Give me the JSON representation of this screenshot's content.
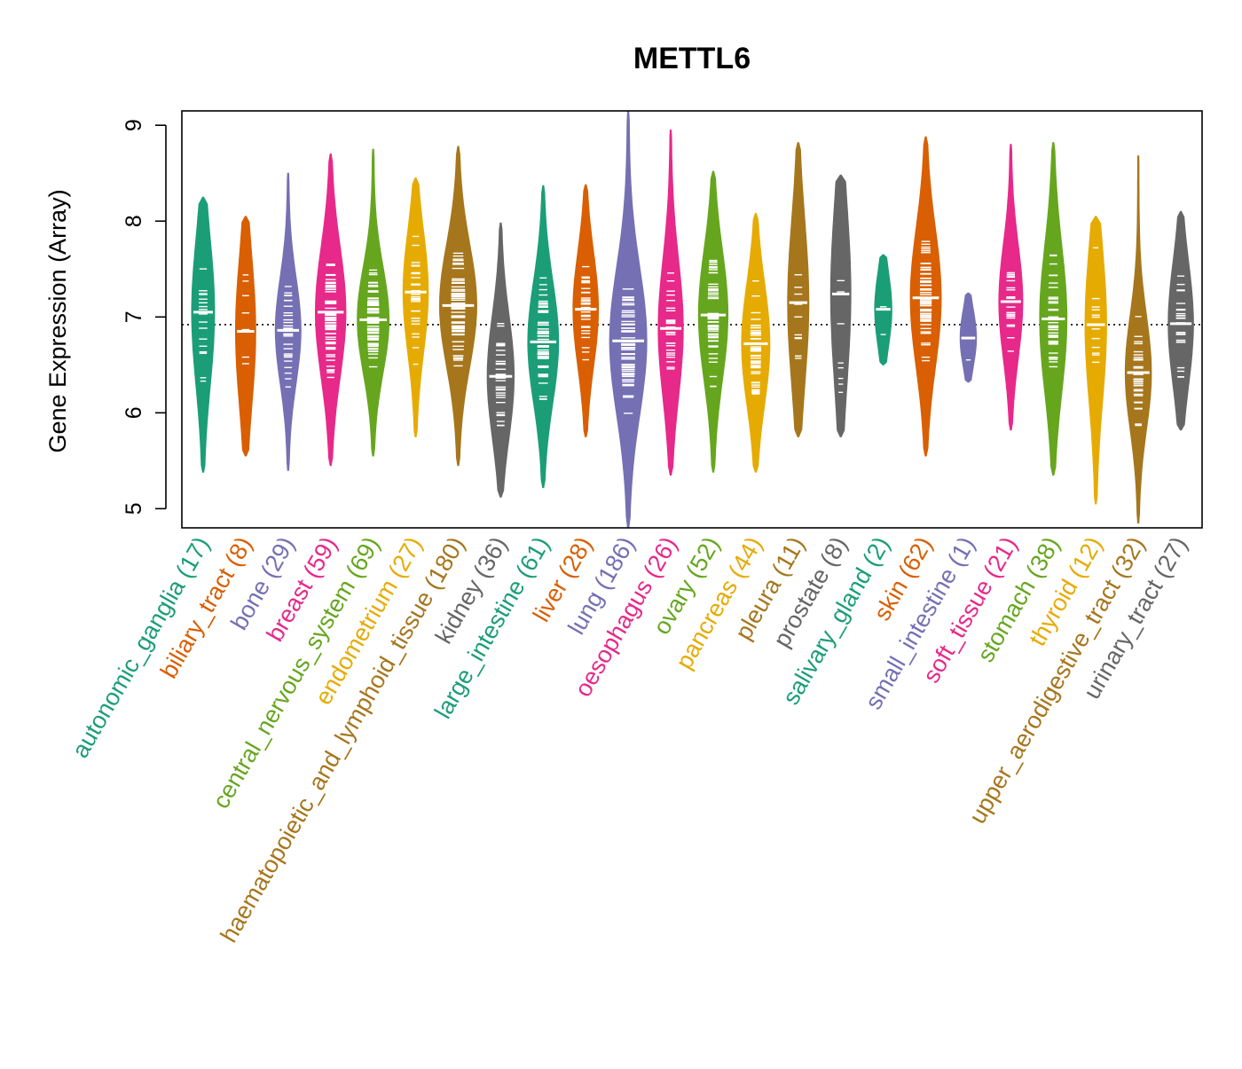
{
  "chart_data": {
    "type": "violin",
    "title": "METTL6",
    "ylabel": "Gene Expression (Array)",
    "xlabel": "",
    "ylim": [
      4.8,
      9.15
    ],
    "yticks": [
      "5",
      "6",
      "7",
      "8",
      "9"
    ],
    "reference_line": 6.92,
    "series": [
      {
        "name": "autonomic_ganglia",
        "n": "(17)",
        "color": "#1b9e77",
        "min": 5.38,
        "max": 8.25,
        "median": 7.05,
        "q1": 6.55,
        "q3": 7.45
      },
      {
        "name": "biliary_tract",
        "n": "(8)",
        "color": "#d95f02",
        "min": 5.55,
        "max": 8.05,
        "median": 6.85,
        "q1": 6.5,
        "q3": 7.4
      },
      {
        "name": "bone",
        "n": "(29)",
        "color": "#7570b3",
        "min": 5.4,
        "max": 8.5,
        "median": 6.86,
        "q1": 6.5,
        "q3": 7.15
      },
      {
        "name": "breast",
        "n": "(59)",
        "color": "#e7298a",
        "min": 5.45,
        "max": 8.7,
        "median": 7.05,
        "q1": 6.6,
        "q3": 7.4
      },
      {
        "name": "central_nervous_system",
        "n": "(69)",
        "color": "#66a61e",
        "min": 5.55,
        "max": 8.75,
        "median": 6.97,
        "q1": 6.65,
        "q3": 7.3
      },
      {
        "name": "endometrium",
        "n": "(27)",
        "color": "#e6ab02",
        "min": 5.75,
        "max": 8.45,
        "median": 7.26,
        "q1": 6.85,
        "q3": 7.6
      },
      {
        "name": "haematopoietic_and_lymphoid_tissue",
        "n": "(180)",
        "color": "#a6761d",
        "min": 5.45,
        "max": 8.78,
        "median": 7.12,
        "q1": 6.75,
        "q3": 7.5
      },
      {
        "name": "kidney",
        "n": "(36)",
        "color": "#666666",
        "min": 5.12,
        "max": 7.98,
        "median": 6.38,
        "q1": 6.0,
        "q3": 6.75
      },
      {
        "name": "large_intestine",
        "n": "(61)",
        "color": "#1b9e77",
        "min": 5.22,
        "max": 8.37,
        "median": 6.74,
        "q1": 6.35,
        "q3": 7.1
      },
      {
        "name": "liver",
        "n": "(28)",
        "color": "#d95f02",
        "min": 5.75,
        "max": 8.38,
        "median": 7.08,
        "q1": 6.75,
        "q3": 7.45
      },
      {
        "name": "lung",
        "n": "(186)",
        "color": "#7570b3",
        "min": 4.8,
        "max": 9.15,
        "median": 6.75,
        "q1": 6.3,
        "q3": 7.2
      },
      {
        "name": "oesophagus",
        "n": "(26)",
        "color": "#e7298a",
        "min": 5.35,
        "max": 8.95,
        "median": 6.88,
        "q1": 6.4,
        "q3": 7.25
      },
      {
        "name": "ovary",
        "n": "(52)",
        "color": "#66a61e",
        "min": 5.38,
        "max": 8.52,
        "median": 7.02,
        "q1": 6.6,
        "q3": 7.4
      },
      {
        "name": "pancreas",
        "n": "(44)",
        "color": "#e6ab02",
        "min": 5.38,
        "max": 8.08,
        "median": 6.72,
        "q1": 6.3,
        "q3": 7.05
      },
      {
        "name": "pleura",
        "n": "(11)",
        "color": "#a6761d",
        "min": 5.75,
        "max": 8.82,
        "median": 7.15,
        "q1": 6.6,
        "q3": 7.6
      },
      {
        "name": "prostate",
        "n": "(8)",
        "color": "#666666",
        "min": 5.75,
        "max": 8.48,
        "median": 7.24,
        "q1": 6.5,
        "q3": 7.6
      },
      {
        "name": "salivary_gland",
        "n": "(2)",
        "color": "#1b9e77",
        "min": 6.5,
        "max": 7.65,
        "median": 7.08,
        "q1": 6.85,
        "q3": 7.3
      },
      {
        "name": "skin",
        "n": "(62)",
        "color": "#d95f02",
        "min": 5.55,
        "max": 8.88,
        "median": 7.2,
        "q1": 6.75,
        "q3": 7.6
      },
      {
        "name": "small_intestine",
        "n": "(1)",
        "color": "#7570b3",
        "min": 6.32,
        "max": 7.25,
        "median": 6.78,
        "q1": 6.6,
        "q3": 6.95
      },
      {
        "name": "soft_tissue",
        "n": "(21)",
        "color": "#e7298a",
        "min": 5.82,
        "max": 8.8,
        "median": 7.16,
        "q1": 6.8,
        "q3": 7.5
      },
      {
        "name": "stomach",
        "n": "(38)",
        "color": "#66a61e",
        "min": 5.35,
        "max": 8.82,
        "median": 6.98,
        "q1": 6.5,
        "q3": 7.4
      },
      {
        "name": "thyroid",
        "n": "(12)",
        "color": "#e6ab02",
        "min": 5.05,
        "max": 8.05,
        "median": 6.92,
        "q1": 6.4,
        "q3": 7.35
      },
      {
        "name": "upper_aerodigestive_tract",
        "n": "(32)",
        "color": "#a6761d",
        "min": 4.85,
        "max": 8.68,
        "median": 6.42,
        "q1": 6.0,
        "q3": 6.7
      },
      {
        "name": "urinary_tract",
        "n": "(27)",
        "color": "#666666",
        "min": 5.82,
        "max": 8.1,
        "median": 6.93,
        "q1": 6.55,
        "q3": 7.3
      }
    ]
  }
}
